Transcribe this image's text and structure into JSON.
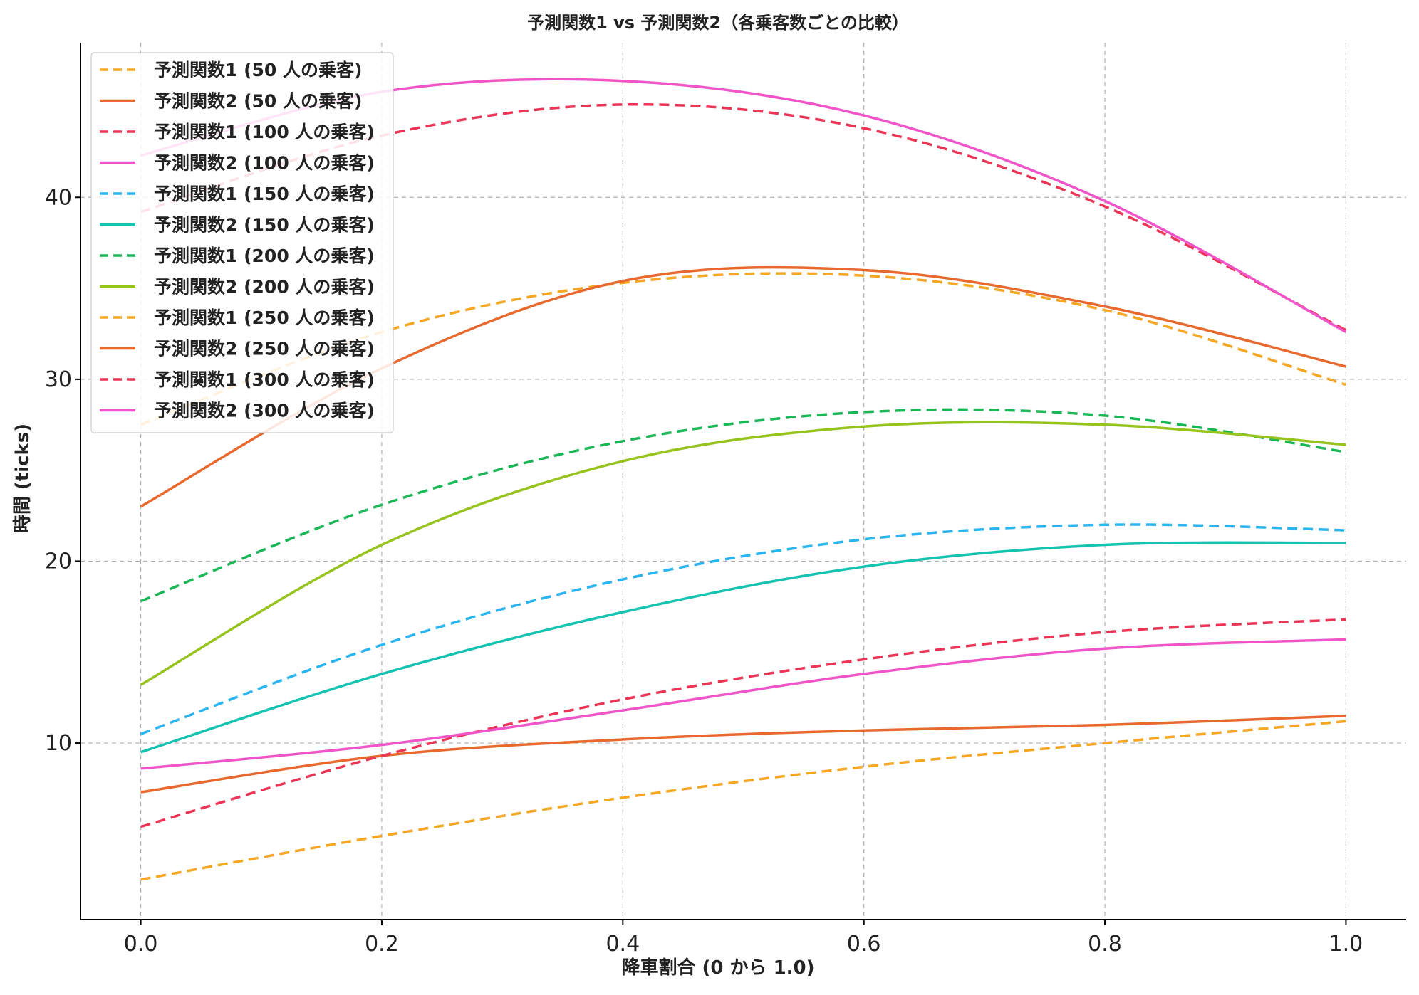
{
  "chart_data": {
    "type": "line",
    "title": "予測関数1 vs 予測関数2（各乗客数ごとの比較）",
    "xlabel": "降車割合 (0 から 1.0)",
    "ylabel": "時間 (ticks)",
    "xlim": [
      -0.05,
      1.05
    ],
    "ylim": [
      0.3,
      48.5
    ],
    "xticks": [
      0.0,
      0.2,
      0.4,
      0.6,
      0.8,
      1.0
    ],
    "xtick_labels": [
      "0.0",
      "0.2",
      "0.4",
      "0.6",
      "0.8",
      "1.0"
    ],
    "yticks": [
      10,
      20,
      30,
      40
    ],
    "ytick_labels": [
      "10",
      "20",
      "30",
      "40"
    ],
    "grid": true,
    "legend_position": "top-left",
    "x": [
      0.0,
      0.2,
      0.4,
      0.6,
      0.8,
      1.0
    ],
    "series": [
      {
        "name": "予測関数1 (50 人の乗客)",
        "color": "#F5A623",
        "dashed": true,
        "values": [
          2.5,
          4.9,
          7.0,
          8.7,
          10.0,
          11.2
        ]
      },
      {
        "name": "予測関数2 (50 人の乗客)",
        "color": "#E8692E",
        "dashed": false,
        "values": [
          7.3,
          9.3,
          10.2,
          10.7,
          11.0,
          11.5
        ]
      },
      {
        "name": "予測関数1 (100 人の乗客)",
        "color": "#EB3557",
        "dashed": true,
        "values": [
          5.4,
          9.3,
          12.4,
          14.6,
          16.1,
          16.8
        ]
      },
      {
        "name": "予測関数2 (100 人の乗客)",
        "color": "#EF55C8",
        "dashed": false,
        "values": [
          8.6,
          9.9,
          11.8,
          13.8,
          15.2,
          15.7
        ]
      },
      {
        "name": "予測関数1 (150 人の乗客)",
        "color": "#2BB5F0",
        "dashed": true,
        "values": [
          10.5,
          15.4,
          19.0,
          21.2,
          22.0,
          21.7
        ]
      },
      {
        "name": "予測関数2 (150 人の乗客)",
        "color": "#16C2B0",
        "dashed": false,
        "values": [
          9.5,
          13.8,
          17.2,
          19.7,
          20.9,
          21.0
        ]
      },
      {
        "name": "予測関数1 (200 人の乗客)",
        "color": "#1BB757",
        "dashed": true,
        "values": [
          17.8,
          23.1,
          26.6,
          28.2,
          28.0,
          26.0
        ]
      },
      {
        "name": "予測関数2 (200 人の乗客)",
        "color": "#96C31E",
        "dashed": false,
        "values": [
          13.2,
          20.9,
          25.5,
          27.4,
          27.5,
          26.4
        ]
      },
      {
        "name": "予測関数1 (250 人の乗客)",
        "color": "#F5A623",
        "dashed": true,
        "values": [
          27.5,
          32.6,
          35.3,
          35.7,
          33.8,
          29.7
        ]
      },
      {
        "name": "予測関数2 (250 人の乗客)",
        "color": "#E8692E",
        "dashed": false,
        "values": [
          23.0,
          30.6,
          35.4,
          36.0,
          34.0,
          30.7
        ]
      },
      {
        "name": "予測関数1 (300 人の乗客)",
        "color": "#EB3557",
        "dashed": true,
        "values": [
          39.2,
          43.4,
          45.1,
          43.8,
          39.5,
          32.7
        ]
      },
      {
        "name": "予測関数2 (300 人の乗客)",
        "color": "#EF55C8",
        "dashed": false,
        "values": [
          42.3,
          45.8,
          46.4,
          44.5,
          39.8,
          32.6
        ]
      }
    ]
  }
}
